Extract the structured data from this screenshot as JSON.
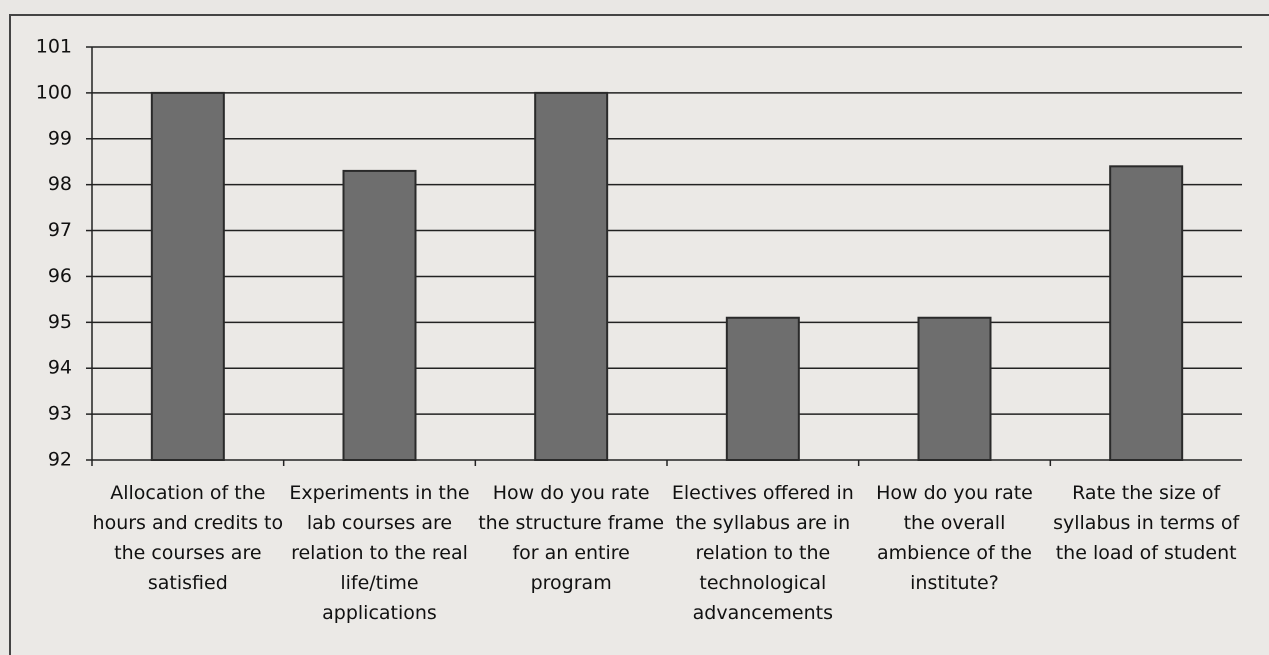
{
  "chart_data": {
    "type": "bar",
    "categories": [
      "Allocation of the hours and credits to the courses are satisfied",
      "Experiments in the lab courses are relation to the real life/time applications",
      "How do you rate the structure frame for an entire program",
      "Electives offered in the syllabus are in relation to the technological advancements",
      "How do you rate the overall ambience of the institute?",
      "Rate the size of syllabus in terms of the load of student"
    ],
    "values": [
      100,
      98.3,
      100,
      95.1,
      95.1,
      98.4
    ],
    "color": "#6e6e6e",
    "ylim": [
      92,
      101
    ],
    "yticks": [
      92,
      93,
      94,
      95,
      96,
      97,
      98,
      99,
      100,
      101
    ],
    "grid": true
  }
}
